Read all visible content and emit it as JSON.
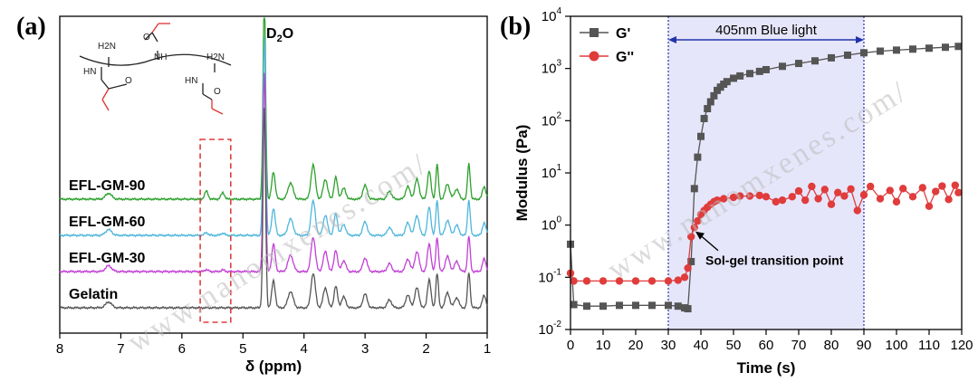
{
  "chart_data": [
    {
      "type": "line",
      "panel_label": "(a)",
      "xlabel": "δ (ppm)",
      "ylabel": "",
      "xlim": [
        8,
        1
      ],
      "x_reversed": true,
      "xticks": [
        "8",
        "7",
        "6",
        "5",
        "4",
        "3",
        "2",
        "1"
      ],
      "offset_spectra": true,
      "series": [
        {
          "name": "EFL-GM-90",
          "color": "#2ca02c",
          "baseline": 3.2
        },
        {
          "name": "EFL-GM-60",
          "color": "#4fb6dc",
          "baseline": 2.2
        },
        {
          "name": "EFL-GM-30",
          "color": "#c23fd6",
          "baseline": 1.2
        },
        {
          "name": "Gelatin",
          "color": "#555555",
          "baseline": 0.2
        }
      ],
      "peaks": [
        {
          "x": 7.2,
          "h": 0.16,
          "w": 0.07
        },
        {
          "x": 5.6,
          "h": 0.22,
          "w": 0.04,
          "methacryl": true
        },
        {
          "x": 5.33,
          "h": 0.18,
          "w": 0.04,
          "methacryl": true
        },
        {
          "x": 4.65,
          "h": 5.5,
          "w": 0.03
        },
        {
          "x": 4.5,
          "h": 0.75,
          "w": 0.04
        },
        {
          "x": 4.22,
          "h": 0.45,
          "w": 0.06
        },
        {
          "x": 3.85,
          "h": 0.95,
          "w": 0.05
        },
        {
          "x": 3.65,
          "h": 0.55,
          "w": 0.05
        },
        {
          "x": 3.48,
          "h": 0.6,
          "w": 0.04
        },
        {
          "x": 3.35,
          "h": 0.3,
          "w": 0.05
        },
        {
          "x": 3.0,
          "h": 0.38,
          "w": 0.05
        },
        {
          "x": 2.6,
          "h": 0.22,
          "w": 0.05
        },
        {
          "x": 2.3,
          "h": 0.35,
          "w": 0.05
        },
        {
          "x": 2.15,
          "h": 0.55,
          "w": 0.05
        },
        {
          "x": 1.95,
          "h": 0.78,
          "w": 0.04
        },
        {
          "x": 1.82,
          "h": 0.95,
          "w": 0.03
        },
        {
          "x": 1.65,
          "h": 0.42,
          "w": 0.05
        },
        {
          "x": 1.5,
          "h": 0.28,
          "w": 0.05
        },
        {
          "x": 1.3,
          "h": 0.98,
          "w": 0.03
        },
        {
          "x": 1.05,
          "h": 0.35,
          "w": 0.04
        }
      ],
      "annotations": {
        "solvent_peak": "D2O",
        "highlight_box_ppm": [
          5.7,
          5.2
        ]
      },
      "structure_labels": [
        "H2N",
        "O",
        "NH",
        "H2N",
        "HN",
        "O",
        "HN",
        "O"
      ]
    },
    {
      "type": "scatter",
      "panel_label": "(b)",
      "xlabel": "Time (s)",
      "ylabel": "Modulus (Pa)",
      "xlim": [
        0,
        120
      ],
      "ylim_log10": [
        -2,
        4
      ],
      "y_log_scale": true,
      "xticks": [
        "0",
        "10",
        "20",
        "30",
        "40",
        "50",
        "60",
        "70",
        "80",
        "90",
        "100",
        "110",
        "120"
      ],
      "yticks": [
        {
          "base": "10",
          "exp": "-2"
        },
        {
          "base": "10",
          "exp": "-1"
        },
        {
          "base": "10",
          "exp": "0"
        },
        {
          "base": "10",
          "exp": "1"
        },
        {
          "base": "10",
          "exp": "2"
        },
        {
          "base": "10",
          "exp": "3"
        },
        {
          "base": "10",
          "exp": "4"
        }
      ],
      "illumination_band": {
        "label": "405nm Blue light",
        "start": 30,
        "end": 90
      },
      "legend": {
        "placement": "top-left",
        "entries": [
          "G'",
          "G''"
        ]
      },
      "series": [
        {
          "name": "G'",
          "color": "#555555",
          "marker": "square",
          "points": [
            [
              0,
              0.43
            ],
            [
              1,
              0.03
            ],
            [
              5,
              0.028
            ],
            [
              10,
              0.028
            ],
            [
              15,
              0.029
            ],
            [
              20,
              0.029
            ],
            [
              25,
              0.029
            ],
            [
              30,
              0.029
            ],
            [
              33,
              0.028
            ],
            [
              35,
              0.026
            ],
            [
              36,
              0.025
            ],
            [
              37,
              0.2
            ],
            [
              38,
              5
            ],
            [
              39,
              20
            ],
            [
              40,
              50
            ],
            [
              41,
              110
            ],
            [
              42,
              170
            ],
            [
              43,
              230
            ],
            [
              44,
              300
            ],
            [
              45,
              380
            ],
            [
              46,
              440
            ],
            [
              47,
              500
            ],
            [
              48,
              560
            ],
            [
              50,
              650
            ],
            [
              52,
              720
            ],
            [
              55,
              800
            ],
            [
              58,
              880
            ],
            [
              60,
              950
            ],
            [
              65,
              1100
            ],
            [
              70,
              1250
            ],
            [
              75,
              1400
            ],
            [
              80,
              1600
            ],
            [
              85,
              1800
            ],
            [
              90,
              2000
            ],
            [
              95,
              2150
            ],
            [
              100,
              2250
            ],
            [
              105,
              2350
            ],
            [
              110,
              2450
            ],
            [
              115,
              2550
            ],
            [
              119,
              2650
            ]
          ]
        },
        {
          "name": "G''",
          "color": "#e03c3c",
          "marker": "circle",
          "points": [
            [
              0,
              0.12
            ],
            [
              1,
              0.085
            ],
            [
              5,
              0.085
            ],
            [
              10,
              0.085
            ],
            [
              15,
              0.085
            ],
            [
              20,
              0.085
            ],
            [
              25,
              0.085
            ],
            [
              30,
              0.085
            ],
            [
              33,
              0.088
            ],
            [
              35,
              0.1
            ],
            [
              36,
              0.15
            ],
            [
              37,
              0.6
            ],
            [
              38,
              0.9
            ],
            [
              39,
              1.2
            ],
            [
              40,
              1.6
            ],
            [
              41,
              1.9
            ],
            [
              42,
              2.2
            ],
            [
              43,
              2.5
            ],
            [
              44,
              2.8
            ],
            [
              45,
              3.0
            ],
            [
              47,
              3.2
            ],
            [
              50,
              3.4
            ],
            [
              52,
              3.6
            ],
            [
              55,
              3.6
            ],
            [
              58,
              3.7
            ],
            [
              60,
              3.5
            ],
            [
              63,
              2.8
            ],
            [
              65,
              3.0
            ],
            [
              68,
              3.5
            ],
            [
              70,
              4.5
            ],
            [
              72,
              3.0
            ],
            [
              74,
              5.5
            ],
            [
              76,
              3.2
            ],
            [
              78,
              4.8
            ],
            [
              80,
              2.5
            ],
            [
              82,
              4.2
            ],
            [
              84,
              3.6
            ],
            [
              86,
              4.9
            ],
            [
              88,
              1.9
            ],
            [
              90,
              3.8
            ],
            [
              92,
              5.5
            ],
            [
              95,
              3.2
            ],
            [
              98,
              4.6
            ],
            [
              100,
              2.8
            ],
            [
              102,
              5.0
            ],
            [
              105,
              3.5
            ],
            [
              108,
              5.2
            ],
            [
              110,
              2.3
            ],
            [
              112,
              4.4
            ],
            [
              114,
              5.6
            ],
            [
              116,
              3.1
            ],
            [
              118,
              5.8
            ],
            [
              119,
              4.2
            ]
          ]
        }
      ],
      "annotations": {
        "transition_label": "Sol-gel transition point",
        "transition_point": [
          37.5,
          0.85
        ]
      }
    }
  ],
  "watermark_text": "www.nanomxenes.com/"
}
